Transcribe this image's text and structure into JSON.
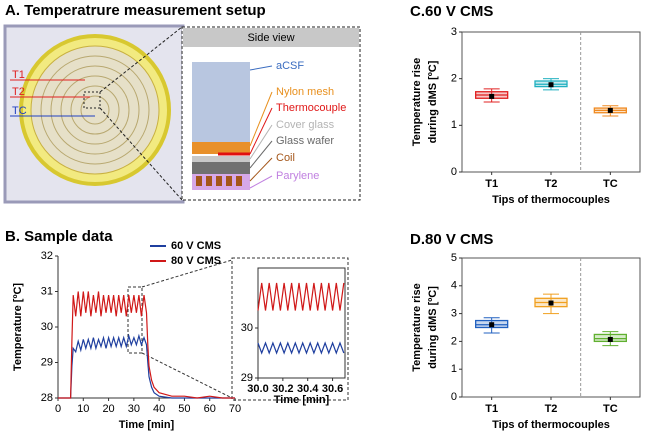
{
  "setup": {
    "title": "A. Temperatrure measurement setup",
    "labels": [
      {
        "text": "T1",
        "color": "#e02020"
      },
      {
        "text": "T2",
        "color": "#e02020"
      },
      {
        "text": "TC",
        "color": "#2040c0"
      }
    ],
    "side_view": {
      "title": "Side view",
      "layers": [
        {
          "label": "aCSF",
          "color": "#3a6cc0"
        },
        {
          "label": "Nylon mesh",
          "color": "#e8901e"
        },
        {
          "label": "Thermocouple",
          "color": "#e01818"
        },
        {
          "label": "Cover glass",
          "color": "#b4b4b4"
        },
        {
          "label": "Glass wafer",
          "color": "#6a6a6a"
        },
        {
          "label": "Coil",
          "color": "#a4561a"
        },
        {
          "label": "Parylene",
          "color": "#c080e0"
        }
      ]
    }
  },
  "chart_data": [
    {
      "type": "line",
      "title": "B. Sample data",
      "xlabel": "Time [min]",
      "ylabel": "Temperature [ºC]",
      "legend": "top",
      "x": [
        0,
        5,
        5.5,
        6,
        7,
        8,
        9,
        10,
        11,
        12,
        13,
        14,
        15,
        16,
        17,
        18,
        19,
        20,
        21,
        22,
        23,
        24,
        25,
        26,
        27,
        28,
        29,
        30,
        31,
        32,
        33,
        34,
        35,
        35.5,
        36,
        37,
        38,
        40,
        45,
        50,
        55,
        60,
        65,
        70
      ],
      "series": [
        {
          "name": "60 V CMS",
          "color": "#1f3f9f",
          "values": [
            28,
            28,
            28.9,
            29.4,
            29.3,
            29.6,
            29.35,
            29.65,
            29.4,
            29.65,
            29.4,
            29.7,
            29.4,
            29.65,
            29.45,
            29.7,
            29.4,
            29.7,
            29.45,
            29.7,
            29.45,
            29.7,
            29.45,
            29.7,
            29.45,
            29.75,
            29.5,
            29.7,
            29.5,
            29.75,
            29.5,
            29.7,
            29.5,
            29.0,
            28.6,
            28.3,
            28.15,
            28.05,
            28.0,
            28.0,
            28.0,
            28.0,
            28.0,
            28.0
          ]
        },
        {
          "name": "80 V CMS",
          "color": "#d01818",
          "values": [
            28,
            28,
            29.6,
            30.9,
            30.3,
            31.0,
            30.3,
            31.0,
            30.4,
            31.0,
            30.3,
            30.9,
            30.4,
            31.0,
            30.3,
            30.9,
            30.4,
            30.9,
            30.4,
            30.9,
            30.3,
            30.9,
            30.4,
            30.9,
            30.3,
            30.9,
            30.4,
            30.9,
            30.4,
            30.9,
            30.3,
            30.9,
            30.4,
            29.5,
            28.9,
            28.5,
            28.3,
            28.15,
            28.05,
            28.05,
            28.0,
            28.05,
            28.0,
            28.0
          ]
        }
      ],
      "xlim": [
        0,
        70
      ],
      "xticks": [
        0,
        10,
        20,
        30,
        40,
        50,
        60,
        70
      ],
      "ylim": [
        28,
        32
      ],
      "yticks": [
        28,
        29,
        30,
        31,
        32
      ]
    },
    {
      "type": "line",
      "xlabel": "Time [min]",
      "x": [
        30.0,
        30.03,
        30.06,
        30.09,
        30.12,
        30.15,
        30.18,
        30.21,
        30.24,
        30.27,
        30.3,
        30.33,
        30.36,
        30.39,
        30.42,
        30.45,
        30.48,
        30.51,
        30.54,
        30.57,
        30.6,
        30.63,
        30.66,
        30.69
      ],
      "series": [
        {
          "color": "#1f3f9f",
          "values": [
            29.7,
            29.5,
            29.7,
            29.5,
            29.7,
            29.5,
            29.7,
            29.5,
            29.7,
            29.5,
            29.7,
            29.5,
            29.7,
            29.5,
            29.7,
            29.5,
            29.7,
            29.5,
            29.7,
            29.5,
            29.7,
            29.5,
            29.7,
            29.5
          ]
        },
        {
          "color": "#d01818",
          "values": [
            30.35,
            30.9,
            30.35,
            30.9,
            30.35,
            30.9,
            30.35,
            30.9,
            30.35,
            30.9,
            30.35,
            30.9,
            30.35,
            30.9,
            30.35,
            30.9,
            30.35,
            30.9,
            30.35,
            30.9,
            30.35,
            30.9,
            30.35,
            30.9
          ]
        }
      ],
      "xlim": [
        30.0,
        30.7
      ],
      "xticks": [
        {
          "value": 30,
          "label": "30.0"
        },
        30.2,
        30.4,
        30.6
      ],
      "ylim": [
        29,
        31.2
      ],
      "yticks": [
        29,
        30
      ]
    },
    {
      "type": "box",
      "title": "C.60 V CMS",
      "ylabel_lines": [
        "Temperature rise",
        "during dMS [ºC]"
      ],
      "xlabel": "Tips of thermocouples",
      "categories": [
        "T1",
        "T2",
        "TC"
      ],
      "colors": [
        "#e02020",
        "#20b0c0",
        "#f08a20"
      ],
      "boxes": [
        {
          "min": 1.5,
          "q1": 1.58,
          "median": 1.65,
          "q3": 1.72,
          "max": 1.78,
          "mean": 1.62
        },
        {
          "min": 1.76,
          "q1": 1.83,
          "median": 1.88,
          "q3": 1.95,
          "max": 2.0,
          "mean": 1.87
        },
        {
          "min": 1.2,
          "q1": 1.27,
          "median": 1.32,
          "q3": 1.37,
          "max": 1.42,
          "mean": 1.32
        }
      ],
      "ylim": [
        0,
        3
      ],
      "yticks": [
        0,
        1,
        2,
        3
      ]
    },
    {
      "type": "box",
      "title": "D.80 V CMS",
      "ylabel_lines": [
        "Temperature rise",
        "during dMS [ºC]"
      ],
      "xlabel": "Tips of thermocouples",
      "categories": [
        "T1",
        "T2",
        "TC"
      ],
      "colors": [
        "#2060c0",
        "#f0a020",
        "#60b030"
      ],
      "boxes": [
        {
          "min": 2.3,
          "q1": 2.5,
          "median": 2.6,
          "q3": 2.75,
          "max": 2.85,
          "mean": 2.6
        },
        {
          "min": 3.0,
          "q1": 3.25,
          "median": 3.4,
          "q3": 3.55,
          "max": 3.7,
          "mean": 3.38
        },
        {
          "min": 1.85,
          "q1": 2.0,
          "median": 2.1,
          "q3": 2.25,
          "max": 2.35,
          "mean": 2.07
        }
      ],
      "ylim": [
        0,
        5
      ],
      "yticks": [
        0,
        1,
        2,
        3,
        4,
        5
      ]
    }
  ]
}
